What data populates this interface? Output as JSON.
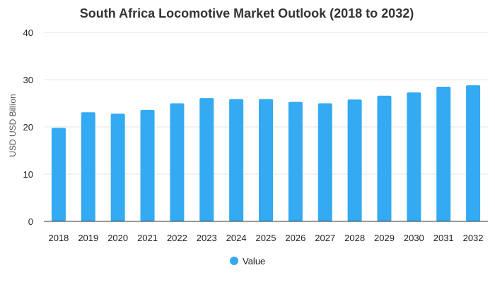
{
  "chart_data": {
    "type": "bar",
    "title": "South Africa Locomotive Market Outlook (2018 to 2032)",
    "xlabel": "",
    "ylabel": "USD USD Billion",
    "categories": [
      "2018",
      "2019",
      "2020",
      "2021",
      "2022",
      "2023",
      "2024",
      "2025",
      "2026",
      "2027",
      "2028",
      "2029",
      "2030",
      "2031",
      "2032"
    ],
    "series": [
      {
        "name": "Value",
        "values": [
          19.8,
          23.1,
          22.8,
          23.6,
          25.0,
          26.1,
          25.9,
          25.9,
          25.3,
          25.0,
          25.8,
          26.6,
          27.3,
          28.5,
          28.8
        ],
        "color": "#33aaf2"
      }
    ],
    "ylim": [
      0,
      40
    ],
    "yticks": [
      "0",
      "10",
      "20",
      "30",
      "40"
    ],
    "grid": true,
    "legend_position": "bottom-center"
  }
}
